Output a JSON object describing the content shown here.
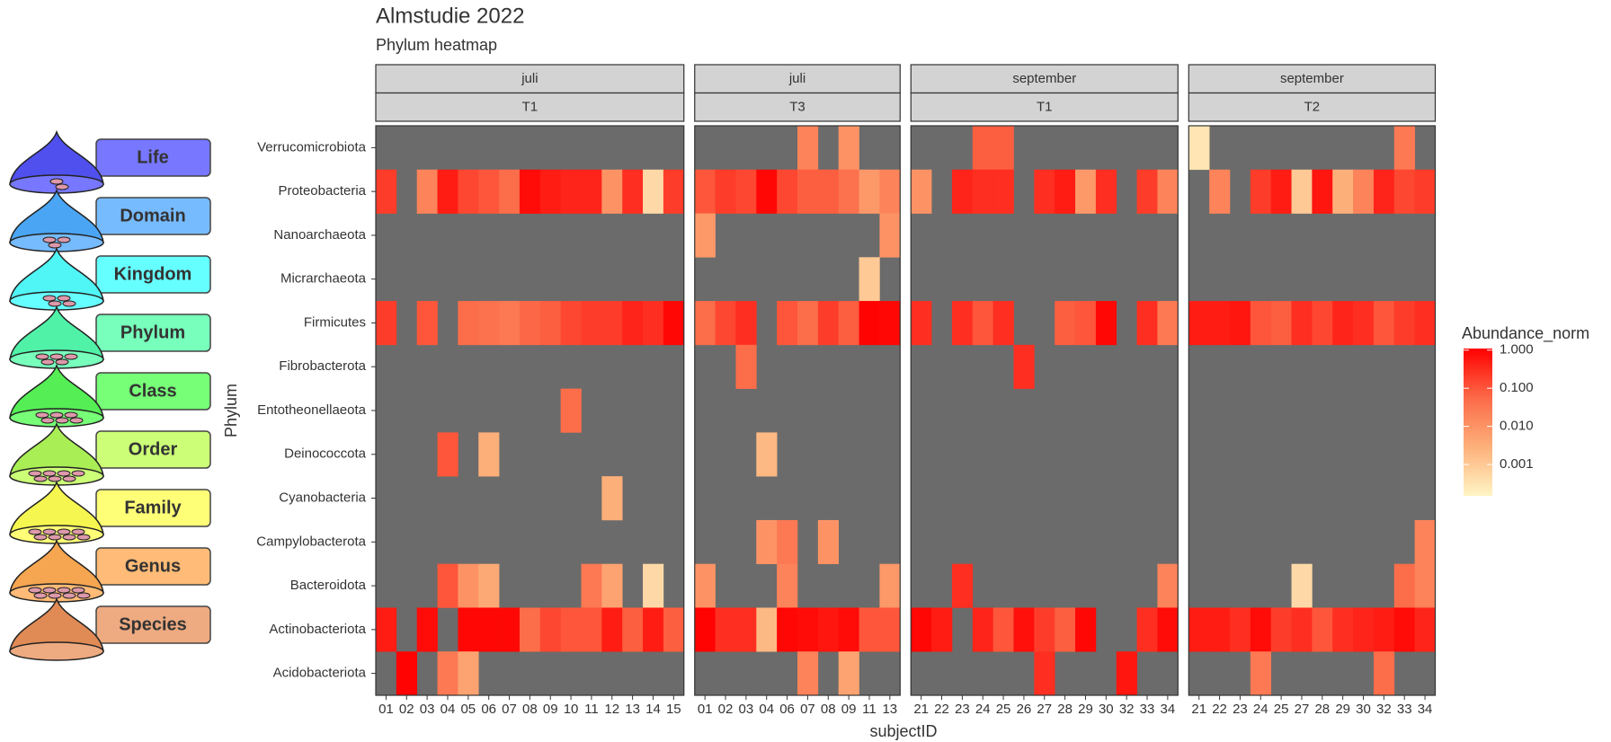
{
  "diagram": {
    "levels": [
      "Life",
      "Domain",
      "Kingdom",
      "Phylum",
      "Class",
      "Order",
      "Family",
      "Genus",
      "Species"
    ]
  },
  "chart_data": {
    "type": "heatmap",
    "title": "Almstudie 2022",
    "subtitle": "Phylum heatmap",
    "x_label": "subjectID",
    "y_label": "Phylum",
    "rows": [
      "Verrucomicrobiota",
      "Proteobacteria",
      "Nanoarchaeota",
      "Micrarchaeota",
      "Firmicutes",
      "Fibrobacterota",
      "Entotheonellaeota",
      "Deinococcota",
      "Cyanobacteria",
      "Campylobacterota",
      "Bacteroidota",
      "Actinobacteriota",
      "Acidobacteriota"
    ],
    "legend_title": "Abundance_norm",
    "log_scale": true,
    "colorlim": [
      0.00015,
      1.1
    ],
    "colorticks": [
      {
        "value": 1,
        "label": "1.000"
      },
      {
        "value": 0.1,
        "label": "0.100"
      },
      {
        "value": 0.01,
        "label": "0.010"
      },
      {
        "value": 0.001,
        "label": "0.001"
      }
    ],
    "colors": [
      "#FFF5C5",
      "#FDB07A",
      "#FC6A48",
      "#FF0000"
    ],
    "na_color": "#6b6b6b",
    "panels": [
      {
        "strip": [
          "juli",
          "T1"
        ],
        "categories": [
          "01",
          "02",
          "03",
          "04",
          "05",
          "06",
          "07",
          "08",
          "09",
          "10",
          "11",
          "12",
          "13",
          "14",
          "15"
        ],
        "values": [
          [
            null,
            null,
            null,
            null,
            null,
            null,
            null,
            null,
            null,
            null,
            null,
            null,
            null,
            null,
            null
          ],
          [
            0.2,
            null,
            0.02,
            0.5,
            0.15,
            0.1,
            0.05,
            0.8,
            0.5,
            0.4,
            0.4,
            0.01,
            0.3,
            0.0005,
            0.2
          ],
          [
            null,
            null,
            null,
            null,
            null,
            null,
            null,
            null,
            null,
            null,
            null,
            null,
            null,
            null,
            null
          ],
          [
            null,
            null,
            null,
            null,
            null,
            null,
            null,
            null,
            null,
            null,
            null,
            null,
            null,
            null,
            null
          ],
          [
            0.2,
            null,
            0.1,
            null,
            0.05,
            0.04,
            0.03,
            0.06,
            0.08,
            0.15,
            0.2,
            0.2,
            0.4,
            0.3,
            0.9
          ],
          [
            null,
            null,
            null,
            null,
            null,
            null,
            null,
            null,
            null,
            null,
            null,
            null,
            null,
            null,
            null
          ],
          [
            null,
            null,
            null,
            null,
            null,
            null,
            null,
            null,
            null,
            0.05,
            null,
            null,
            null,
            null,
            null
          ],
          [
            null,
            null,
            null,
            0.1,
            null,
            0.003,
            null,
            null,
            null,
            null,
            null,
            null,
            null,
            null,
            null
          ],
          [
            null,
            null,
            null,
            null,
            null,
            null,
            null,
            null,
            null,
            null,
            null,
            0.003,
            null,
            null,
            null
          ],
          [
            null,
            null,
            null,
            null,
            null,
            null,
            null,
            null,
            null,
            null,
            null,
            null,
            null,
            null,
            null
          ],
          [
            null,
            null,
            null,
            0.1,
            0.01,
            0.004,
            null,
            null,
            null,
            null,
            0.03,
            0.005,
            null,
            0.0005,
            null
          ],
          [
            0.5,
            null,
            0.8,
            null,
            0.9,
            0.9,
            0.9,
            0.05,
            0.15,
            0.1,
            0.1,
            0.5,
            0.08,
            0.5,
            0.08
          ],
          [
            null,
            1.0,
            null,
            0.03,
            0.005,
            null,
            null,
            null,
            null,
            null,
            null,
            null,
            null,
            null,
            null
          ]
        ]
      },
      {
        "strip": [
          "juli",
          "T3"
        ],
        "categories": [
          "01",
          "02",
          "03",
          "04",
          "06",
          "07",
          "08",
          "09",
          "11",
          "13"
        ],
        "values": [
          [
            null,
            null,
            null,
            null,
            null,
            0.02,
            null,
            0.01,
            null,
            null
          ],
          [
            0.1,
            0.2,
            0.15,
            0.9,
            0.15,
            0.08,
            0.08,
            0.04,
            0.008,
            0.02
          ],
          [
            0.008,
            null,
            null,
            null,
            null,
            null,
            null,
            null,
            null,
            0.01
          ],
          [
            null,
            null,
            null,
            null,
            null,
            null,
            null,
            null,
            0.001,
            null
          ],
          [
            0.05,
            0.15,
            0.3,
            null,
            0.1,
            0.05,
            0.2,
            0.08,
            1.0,
            0.9
          ],
          [
            null,
            null,
            0.05,
            null,
            null,
            null,
            null,
            null,
            null,
            null
          ],
          [
            null,
            null,
            null,
            null,
            null,
            null,
            null,
            null,
            null,
            null
          ],
          [
            null,
            null,
            null,
            0.002,
            null,
            null,
            null,
            null,
            null,
            null
          ],
          [
            null,
            null,
            null,
            null,
            null,
            null,
            null,
            null,
            null,
            null
          ],
          [
            null,
            null,
            null,
            0.01,
            0.03,
            null,
            0.01,
            null,
            null,
            null
          ],
          [
            0.01,
            null,
            null,
            null,
            0.02,
            null,
            null,
            null,
            null,
            0.008
          ],
          [
            1.0,
            0.3,
            0.3,
            0.002,
            0.9,
            0.8,
            0.6,
            0.8,
            0.1,
            0.1
          ],
          [
            null,
            null,
            null,
            null,
            null,
            0.02,
            null,
            0.005,
            null,
            null
          ]
        ]
      },
      {
        "strip": [
          "september",
          "T1"
        ],
        "categories": [
          "21",
          "22",
          "23",
          "24",
          "25",
          "26",
          "27",
          "28",
          "29",
          "30",
          "32",
          "33",
          "34"
        ],
        "values": [
          [
            null,
            null,
            null,
            0.08,
            0.08,
            null,
            null,
            null,
            null,
            null,
            null,
            null,
            null
          ],
          [
            0.01,
            null,
            0.4,
            0.3,
            0.3,
            null,
            0.3,
            0.5,
            0.008,
            0.3,
            null,
            0.2,
            0.02
          ],
          [
            null,
            null,
            null,
            null,
            null,
            null,
            null,
            null,
            null,
            null,
            null,
            null,
            null
          ],
          [
            null,
            null,
            null,
            null,
            null,
            null,
            null,
            null,
            null,
            null,
            null,
            null,
            null
          ],
          [
            0.3,
            null,
            0.3,
            0.1,
            0.3,
            null,
            null,
            0.08,
            0.1,
            0.9,
            null,
            0.3,
            0.03
          ],
          [
            null,
            null,
            null,
            null,
            null,
            0.3,
            null,
            null,
            null,
            null,
            null,
            null,
            null
          ],
          [
            null,
            null,
            null,
            null,
            null,
            null,
            null,
            null,
            null,
            null,
            null,
            null,
            null
          ],
          [
            null,
            null,
            null,
            null,
            null,
            null,
            null,
            null,
            null,
            null,
            null,
            null,
            null
          ],
          [
            null,
            null,
            null,
            null,
            null,
            null,
            null,
            null,
            null,
            null,
            null,
            null,
            null
          ],
          [
            null,
            null,
            null,
            null,
            null,
            null,
            null,
            null,
            null,
            null,
            null,
            null,
            null
          ],
          [
            null,
            null,
            0.3,
            null,
            null,
            null,
            null,
            null,
            null,
            null,
            null,
            null,
            0.02
          ],
          [
            0.9,
            0.5,
            null,
            0.4,
            0.1,
            0.7,
            0.2,
            0.08,
            0.9,
            null,
            null,
            0.3,
            0.8
          ],
          [
            null,
            null,
            null,
            null,
            null,
            null,
            0.3,
            null,
            null,
            null,
            0.6,
            null,
            null
          ]
        ]
      },
      {
        "strip": [
          "september",
          "T2"
        ],
        "categories": [
          "21",
          "22",
          "23",
          "24",
          "25",
          "27",
          "28",
          "29",
          "30",
          "32",
          "33",
          "34"
        ],
        "values": [
          [
            0.0003,
            null,
            null,
            null,
            null,
            null,
            null,
            null,
            null,
            null,
            0.03,
            null
          ],
          [
            null,
            0.02,
            null,
            0.2,
            0.5,
            0.001,
            0.6,
            0.003,
            0.02,
            0.4,
            0.15,
            0.2
          ],
          [
            null,
            null,
            null,
            null,
            null,
            null,
            null,
            null,
            null,
            null,
            null,
            null
          ],
          [
            null,
            null,
            null,
            null,
            null,
            null,
            null,
            null,
            null,
            null,
            null,
            null
          ],
          [
            0.5,
            0.5,
            0.6,
            0.1,
            0.08,
            0.3,
            0.15,
            0.4,
            0.3,
            0.1,
            0.2,
            0.3
          ],
          [
            null,
            null,
            null,
            null,
            null,
            null,
            null,
            null,
            null,
            null,
            null,
            null
          ],
          [
            null,
            null,
            null,
            null,
            null,
            null,
            null,
            null,
            null,
            null,
            null,
            null
          ],
          [
            null,
            null,
            null,
            null,
            null,
            null,
            null,
            null,
            null,
            null,
            null,
            null
          ],
          [
            null,
            null,
            null,
            null,
            null,
            null,
            null,
            null,
            null,
            null,
            null,
            null
          ],
          [
            null,
            null,
            null,
            null,
            null,
            null,
            null,
            null,
            null,
            null,
            null,
            0.02
          ],
          [
            null,
            null,
            null,
            null,
            null,
            0.0005,
            null,
            null,
            null,
            null,
            0.05,
            0.02
          ],
          [
            0.5,
            0.5,
            0.3,
            0.8,
            0.2,
            0.3,
            0.1,
            0.3,
            0.4,
            0.5,
            0.8,
            0.4
          ],
          [
            null,
            null,
            null,
            0.03,
            null,
            null,
            null,
            null,
            null,
            0.05,
            null,
            null
          ]
        ]
      }
    ]
  }
}
